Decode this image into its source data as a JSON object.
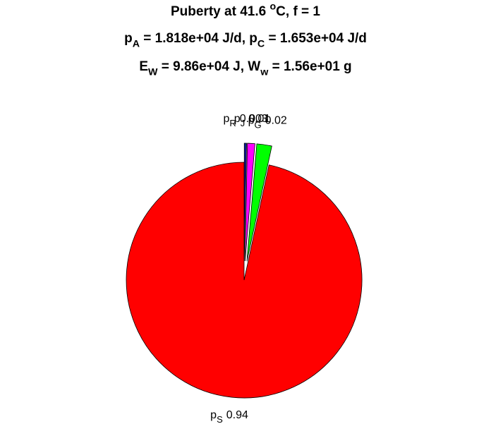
{
  "chart_data": {
    "type": "pie",
    "title": [
      [
        {
          "text": "Puberty at 41.6 "
        },
        {
          "sup": "o"
        },
        {
          "text": "C, f = 1"
        }
      ],
      [
        {
          "text": "p"
        },
        {
          "sub": "A"
        },
        {
          "text": " = 1.818e+04 J/d,  p"
        },
        {
          "sub": "C"
        },
        {
          "text": " = 1.653e+04 J/d"
        }
      ],
      [
        {
          "text": "E"
        },
        {
          "sub": "W"
        },
        {
          "text": " = 9.86e+04 J, W"
        },
        {
          "sub": "w"
        },
        {
          "text": " = 1.56e+01 g"
        }
      ]
    ],
    "categories": [
      {
        "text": "p",
        "sub": "R"
      },
      {
        "text": "p",
        "sub": "J"
      },
      {
        "text": "p",
        "sub": "G"
      },
      {
        "text": "p",
        "sub": "S"
      }
    ],
    "values": [
      0.003,
      0.01,
      0.02,
      0.94
    ],
    "colors": [
      "#0a1a9a",
      "#ff00ff",
      "#00ff00",
      "#ff0000"
    ],
    "explode": [
      true,
      true,
      true,
      false
    ]
  }
}
